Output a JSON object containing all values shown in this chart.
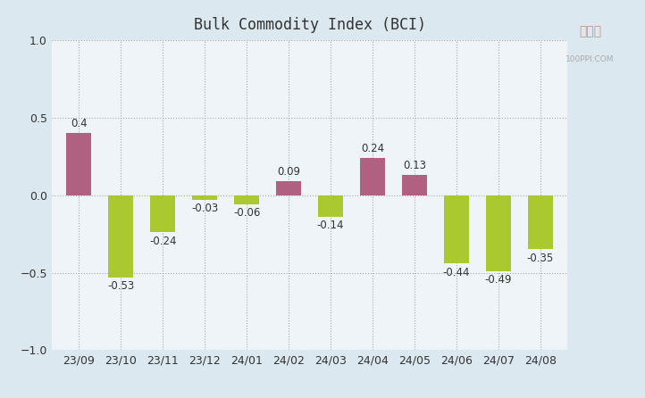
{
  "categories": [
    "23/09",
    "23/10",
    "23/11",
    "23/12",
    "24/01",
    "24/02",
    "24/03",
    "24/04",
    "24/05",
    "24/06",
    "24/07",
    "24/08"
  ],
  "values": [
    0.4,
    -0.53,
    -0.24,
    -0.03,
    -0.06,
    0.09,
    -0.14,
    0.24,
    0.13,
    -0.44,
    -0.49,
    -0.35
  ],
  "bar_color_positive": "#b06080",
  "bar_color_negative": "#aac830",
  "title": "Bulk Commodity Index (BCI)",
  "ylim": [
    -1,
    1
  ],
  "yticks": [
    -1,
    -0.5,
    0,
    0.5,
    1
  ],
  "plot_bg_color": "#eef4f8",
  "fig_bg_color": "#f0f4f8",
  "outer_bg_color": "#dce8f0",
  "grid_color": "#aaaaaa",
  "label_fontsize": 8.5,
  "title_fontsize": 12,
  "tick_fontsize": 9,
  "bar_width": 0.6
}
